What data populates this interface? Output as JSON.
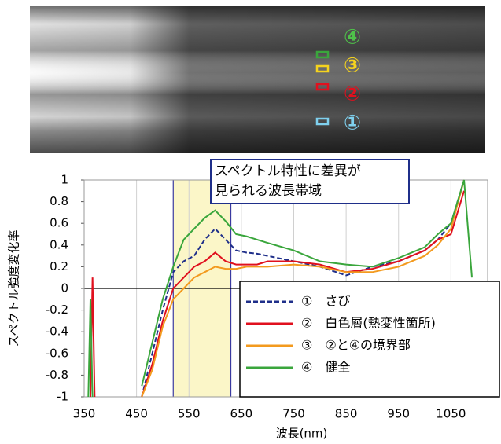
{
  "photo": {
    "labels": [
      "④",
      "③",
      "②",
      "①"
    ]
  },
  "chart_data": {
    "type": "line",
    "annotation": [
      "スペクトル特性に差異が",
      "見られる波長帯域"
    ],
    "x_label": "波長(nm)",
    "y_label": "スペクトル強度変化率",
    "highlight": [
      520,
      630
    ],
    "x": [
      358,
      362,
      366,
      370,
      400,
      460,
      480,
      500,
      520,
      540,
      560,
      580,
      600,
      620,
      640,
      660,
      680,
      700,
      750,
      800,
      850,
      900,
      950,
      1000,
      1025,
      1050,
      1075,
      1090
    ],
    "series": [
      {
        "name": "①　さび",
        "color": "#1f2f8a",
        "dash": true,
        "values": [
          null,
          null,
          null,
          null,
          null,
          -1,
          -0.6,
          -0.2,
          0.15,
          0.25,
          0.3,
          0.45,
          0.55,
          0.45,
          0.35,
          0.33,
          0.32,
          0.3,
          0.25,
          0.2,
          0.12,
          0.2,
          0.25,
          0.35,
          0.45,
          0.6,
          1,
          null
        ]
      },
      {
        "name": "②　白色層(熱変性箇所)",
        "color": "#e0101e",
        "values": [
          null,
          -1,
          0.1,
          -1,
          null,
          -1,
          -0.7,
          -0.3,
          0,
          0.1,
          0.2,
          0.25,
          0.33,
          0.25,
          0.22,
          0.22,
          0.22,
          0.25,
          0.25,
          0.22,
          0.15,
          0.18,
          0.25,
          0.35,
          0.45,
          0.5,
          0.9,
          null
        ]
      },
      {
        "name": "③　②と④の境界部",
        "color": "#f39a1e",
        "values": [
          null,
          null,
          null,
          null,
          null,
          -1,
          -0.75,
          -0.35,
          -0.1,
          0,
          0.1,
          0.15,
          0.2,
          0.18,
          0.18,
          0.2,
          0.2,
          0.2,
          0.22,
          0.2,
          0.15,
          0.15,
          0.2,
          0.3,
          0.4,
          0.55,
          1,
          null
        ]
      },
      {
        "name": "④　健全",
        "color": "#3aa63c",
        "values": [
          -1,
          -0.1,
          -1,
          null,
          null,
          -0.9,
          -0.5,
          -0.1,
          0.2,
          0.45,
          0.55,
          0.65,
          0.72,
          0.62,
          0.5,
          0.48,
          0.45,
          0.42,
          0.35,
          0.25,
          0.22,
          0.2,
          0.28,
          0.38,
          0.5,
          0.6,
          1,
          0.1
        ]
      }
    ],
    "xlim": [
      350,
      1120
    ],
    "ylim": [
      -1,
      1
    ],
    "xticks": [
      350,
      450,
      550,
      650,
      750,
      850,
      950,
      1050
    ],
    "yticks": [
      -1,
      -0.8,
      -0.6,
      -0.4,
      -0.2,
      0,
      0.2,
      0.4,
      0.6,
      0.8,
      1
    ],
    "grid": true,
    "legend": "lower right"
  }
}
